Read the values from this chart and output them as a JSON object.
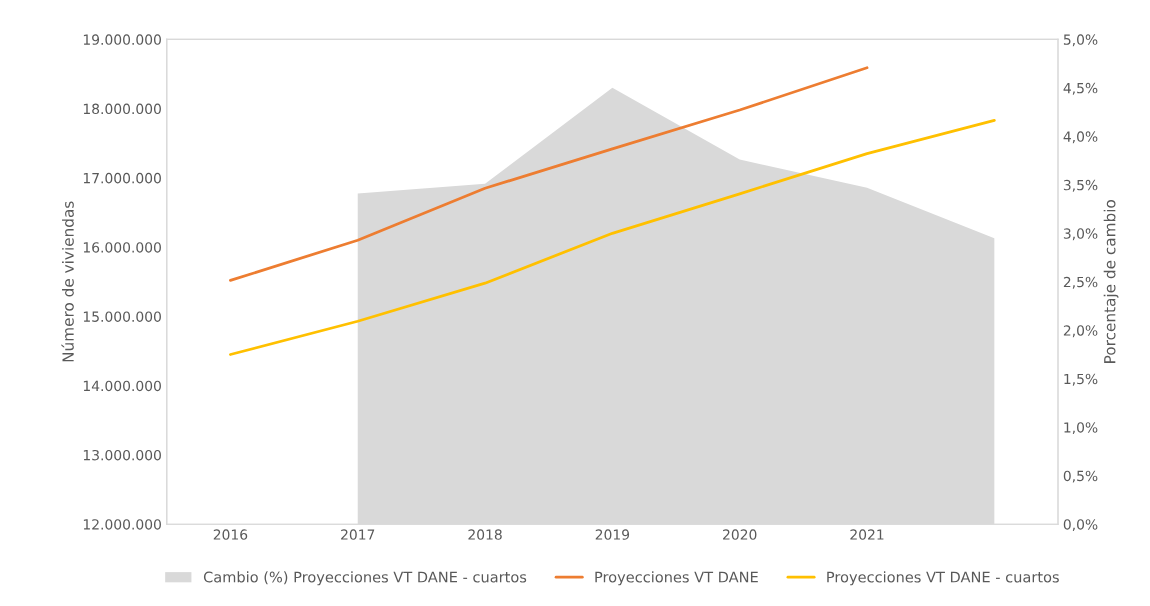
{
  "chart_data": {
    "type": "line",
    "categories": [
      "2016",
      "2017",
      "2018",
      "2019",
      "2020",
      "2021",
      null
    ],
    "series": [
      {
        "name": "Cambio (%) Proyecciones VT DANE - cuartos",
        "type": "area",
        "axis": "y2",
        "color": "#d9d9d9",
        "values": [
          null,
          3.41,
          3.51,
          4.5,
          3.76,
          3.47,
          2.95
        ]
      },
      {
        "name": "Proyecciones VT DANE",
        "color": "#ed7d31",
        "values": [
          15520000,
          16100000,
          16850000,
          17420000,
          17980000,
          18590000,
          null
        ]
      },
      {
        "name": "Proyecciones VT DANE - cuartos",
        "color": "#ffc000",
        "values": [
          14450000,
          14930000,
          15480000,
          16200000,
          16770000,
          17350000,
          17830000
        ]
      }
    ],
    "ylabel": "Número de viviendas",
    "y2label": "Porcentaje de cambio",
    "ylim": [
      12000000,
      19000000
    ],
    "yticks": [
      {
        "value": 12000000,
        "label": "12.000.000"
      },
      {
        "value": 13000000,
        "label": "13.000.000"
      },
      {
        "value": 14000000,
        "label": "14.000.000"
      },
      {
        "value": 15000000,
        "label": "15.000.000"
      },
      {
        "value": 16000000,
        "label": "16.000.000"
      },
      {
        "value": 17000000,
        "label": "17.000.000"
      },
      {
        "value": 18000000,
        "label": "18.000.000"
      },
      {
        "value": 19000000,
        "label": "19.000.000"
      }
    ],
    "y2lim": [
      0,
      5
    ],
    "y2ticks": [
      {
        "value": 0,
        "label": "0,0%"
      },
      {
        "value": 0.5,
        "label": "0,5%"
      },
      {
        "value": 1,
        "label": "1,0%"
      },
      {
        "value": 1.5,
        "label": "1,5%"
      },
      {
        "value": 2,
        "label": "2,0%"
      },
      {
        "value": 2.5,
        "label": "2,5%"
      },
      {
        "value": 3,
        "label": "3,0%"
      },
      {
        "value": 3.5,
        "label": "3,5%"
      },
      {
        "value": 4,
        "label": "4,0%"
      },
      {
        "value": 4.5,
        "label": "4,5%"
      },
      {
        "value": 5,
        "label": "5,0%"
      }
    ],
    "grid": false,
    "legend": "bottom"
  }
}
